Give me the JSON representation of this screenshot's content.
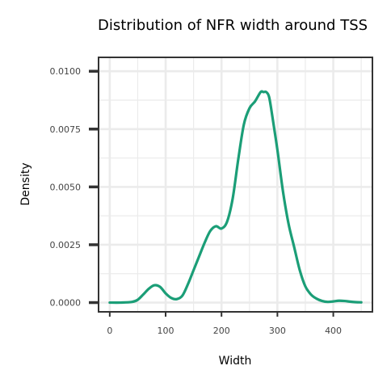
{
  "chart_data": {
    "type": "line",
    "title": "Distribution of NFR width around TSS",
    "xlabel": "Width",
    "ylabel": "Density",
    "xlim": [
      -20,
      470
    ],
    "ylim": [
      -0.0004,
      0.0106
    ],
    "x_ticks": [
      0,
      100,
      200,
      300,
      400
    ],
    "x_tick_labels": [
      "0",
      "100",
      "200",
      "300",
      "400"
    ],
    "y_ticks": [
      0.0,
      0.0025,
      0.005,
      0.0075,
      0.01
    ],
    "y_tick_labels": [
      "0.0000",
      "0.0025",
      "0.0050",
      "0.0075",
      "0.0100"
    ],
    "grid": true,
    "series": [
      {
        "color": "#1b9e77",
        "x": [
          0,
          20,
          40,
          50,
          60,
          70,
          80,
          90,
          100,
          110,
          120,
          130,
          140,
          150,
          160,
          170,
          180,
          190,
          200,
          210,
          220,
          230,
          240,
          250,
          260,
          270,
          275,
          280,
          285,
          290,
          300,
          310,
          320,
          330,
          340,
          350,
          360,
          370,
          380,
          390,
          400,
          410,
          420,
          430,
          440,
          450
        ],
        "y": [
          0.0,
          0.0,
          3e-05,
          0.00012,
          0.00035,
          0.0006,
          0.00075,
          0.00068,
          0.0004,
          0.0002,
          0.00015,
          0.0003,
          0.0008,
          0.0014,
          0.002,
          0.0026,
          0.0031,
          0.0033,
          0.0032,
          0.0035,
          0.0045,
          0.0062,
          0.0077,
          0.0084,
          0.0087,
          0.0091,
          0.0091,
          0.0091,
          0.0089,
          0.0082,
          0.0066,
          0.0048,
          0.0034,
          0.0024,
          0.0014,
          0.0007,
          0.00035,
          0.00017,
          7e-05,
          3e-05,
          5e-05,
          8e-05,
          7e-05,
          4e-05,
          2e-05,
          1e-05
        ]
      }
    ]
  }
}
